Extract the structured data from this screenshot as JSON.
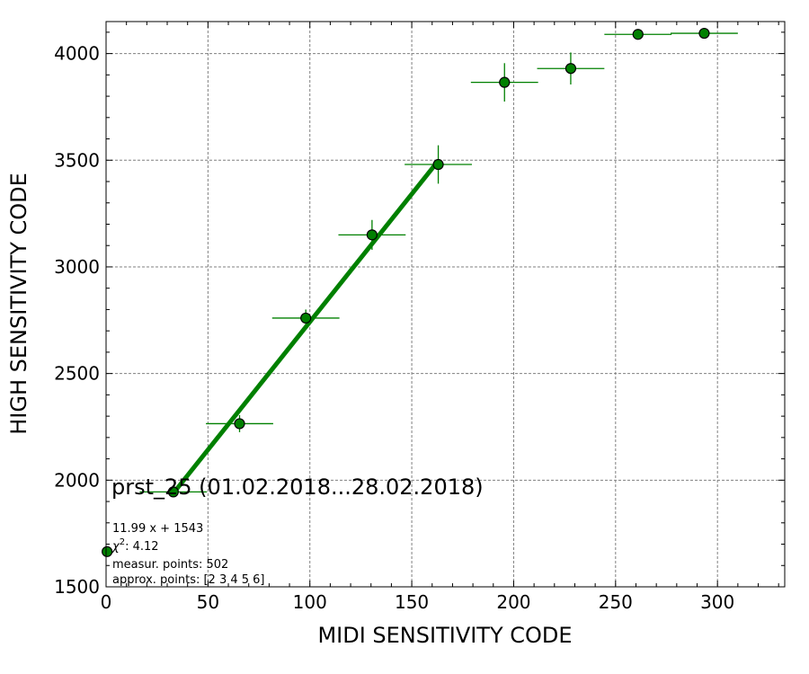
{
  "chart_data": {
    "type": "scatter",
    "title": "",
    "xlabel": "MIDI SENSITIVITY CODE",
    "ylabel": "HIGH SENSITIVITY CODE",
    "xlim": [
      0,
      333
    ],
    "ylim": [
      1500,
      4150
    ],
    "xticks": [
      0,
      50,
      100,
      150,
      200,
      250,
      300
    ],
    "yticks": [
      1500,
      2000,
      2500,
      3000,
      3500,
      4000
    ],
    "grid": true,
    "colors": {
      "points": "#008000",
      "edge": "#000000",
      "errorbars": "#008000",
      "fit": "#008000",
      "grid": "#808080"
    },
    "series": [
      {
        "points": [
          {
            "x": 0.5,
            "y": 1665,
            "xerr": 0,
            "yerr": 0
          },
          {
            "x": 33,
            "y": 1945,
            "xerr": 16.5,
            "yerr": 0
          },
          {
            "x": 65.5,
            "y": 2265,
            "xerr": 16.5,
            "yerr": 40
          },
          {
            "x": 98,
            "y": 2760,
            "xerr": 16.5,
            "yerr": 40
          },
          {
            "x": 130.5,
            "y": 3150,
            "xerr": 16.5,
            "yerr": 70
          },
          {
            "x": 163,
            "y": 3480,
            "xerr": 16.5,
            "yerr": 90
          },
          {
            "x": 195.5,
            "y": 3865,
            "xerr": 16.5,
            "yerr": 90
          },
          {
            "x": 228,
            "y": 3930,
            "xerr": 16.5,
            "yerr": 75
          },
          {
            "x": 261,
            "y": 4090,
            "xerr": 16.5,
            "yerr": 0
          },
          {
            "x": 293.5,
            "y": 4095,
            "xerr": 16.5,
            "yerr": 0
          }
        ]
      }
    ],
    "fit_line": {
      "slope": 11.99,
      "intercept": 1543,
      "x_range": [
        33,
        163
      ]
    },
    "annotations": {
      "label": "prst_25 (01.02.2018...28.02.2018)",
      "equation": "11.99 x + 1543",
      "chi2_value": ": 4.12",
      "measured_points": "measur. points: 502",
      "approx_points": "approx. points: [2 3 4 5 6]"
    }
  }
}
